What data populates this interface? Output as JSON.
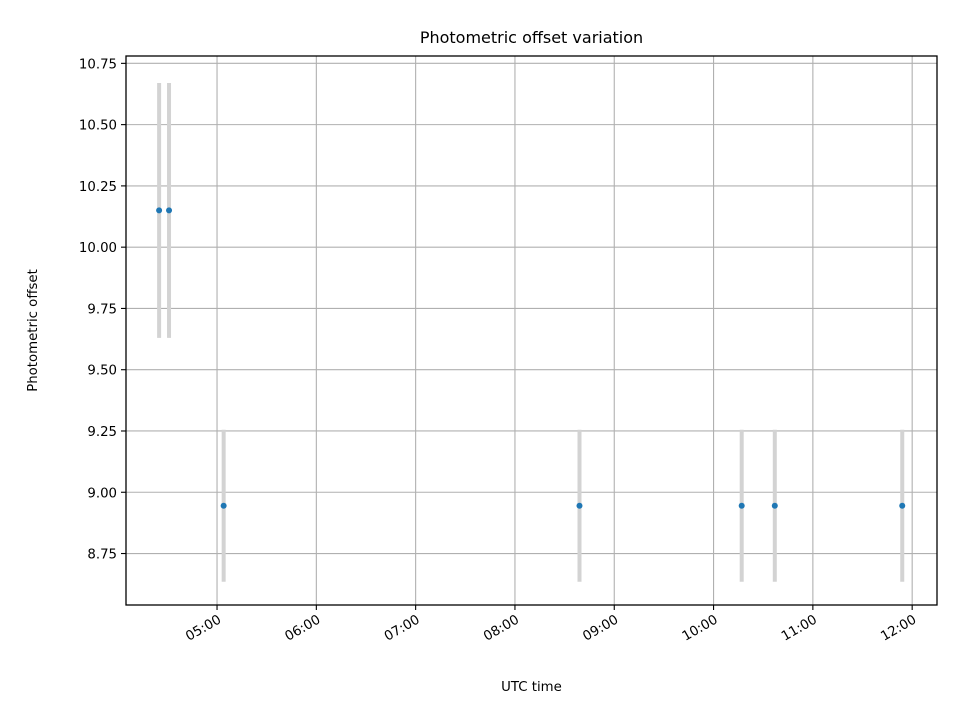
{
  "chart_data": {
    "type": "scatter",
    "title": "Photometric offset variation",
    "xlabel": "UTC time",
    "ylabel": "Photometric offset",
    "x_ticks": [
      "05:00",
      "06:00",
      "07:00",
      "08:00",
      "09:00",
      "10:00",
      "11:00",
      "12:00"
    ],
    "y_ticks": [
      "8.75",
      "9.00",
      "9.25",
      "9.50",
      "9.75",
      "10.00",
      "10.25",
      "10.50",
      "10.75"
    ],
    "xlim": [
      "04:05",
      "12:15"
    ],
    "ylim": [
      8.54,
      10.78
    ],
    "grid": true,
    "series": [
      {
        "x": [
          "04:25",
          "04:31",
          "05:04",
          "08:39",
          "10:17",
          "10:37",
          "11:54"
        ],
        "y": [
          10.15,
          10.15,
          8.945,
          8.945,
          8.945,
          8.945,
          8.945
        ],
        "yerr": [
          0.52,
          0.52,
          0.31,
          0.31,
          0.31,
          0.31,
          0.31
        ]
      }
    ],
    "colors": {
      "marker": "#1f77b4",
      "errorbar": "#d3d3d3",
      "grid": "#b0b0b0",
      "axes": "#000000"
    }
  }
}
